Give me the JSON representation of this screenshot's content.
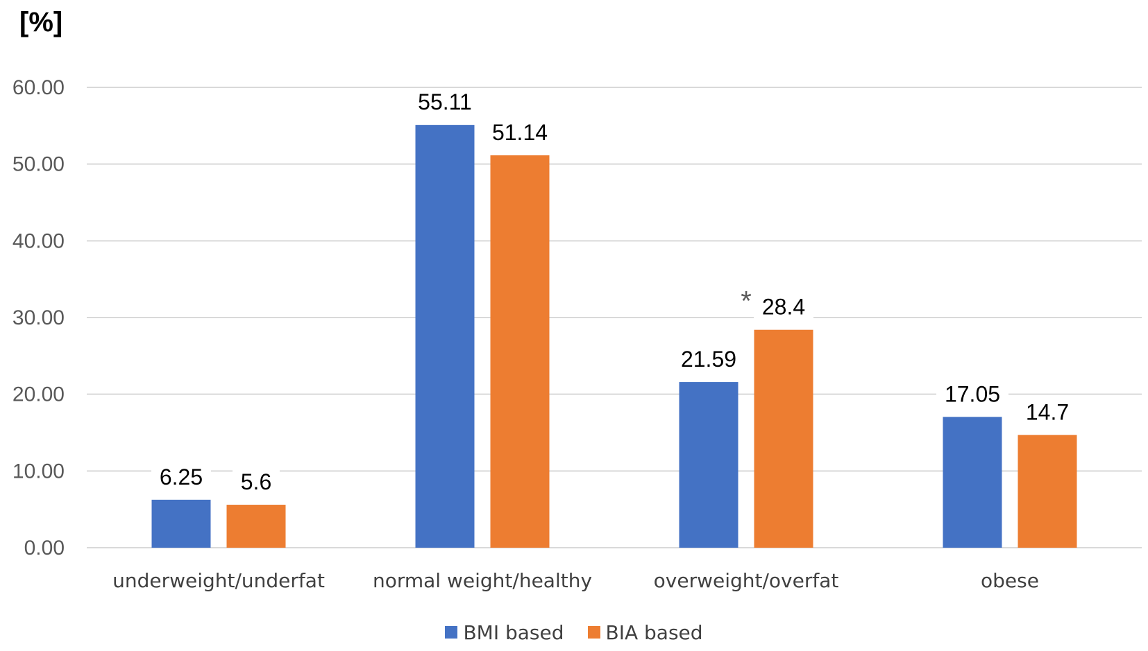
{
  "chart_data": {
    "type": "bar",
    "title": "",
    "ylabel": "[%]",
    "xlabel": "",
    "ylim": [
      0,
      60
    ],
    "yticks": [
      "0.00",
      "10.00",
      "20.00",
      "30.00",
      "40.00",
      "50.00",
      "60.00"
    ],
    "categories": [
      "underweight/underfat",
      "normal weight/healthy",
      "overweight/overfat",
      "obese"
    ],
    "series": [
      {
        "name": "BMI based",
        "color": "#4472C4",
        "values": [
          6.25,
          55.11,
          21.59,
          17.05
        ],
        "labels": [
          "6.25",
          "55.11",
          "21.59",
          "17.05"
        ]
      },
      {
        "name": "BIA based",
        "color": "#ED7D31",
        "values": [
          5.6,
          51.14,
          28.4,
          14.7
        ],
        "labels": [
          "5.6",
          "51.14",
          "28.4",
          "14.7"
        ]
      }
    ],
    "annotations": [
      {
        "text": "*",
        "category_index": 2
      }
    ],
    "grid": true,
    "legend_position": "bottom-center"
  }
}
